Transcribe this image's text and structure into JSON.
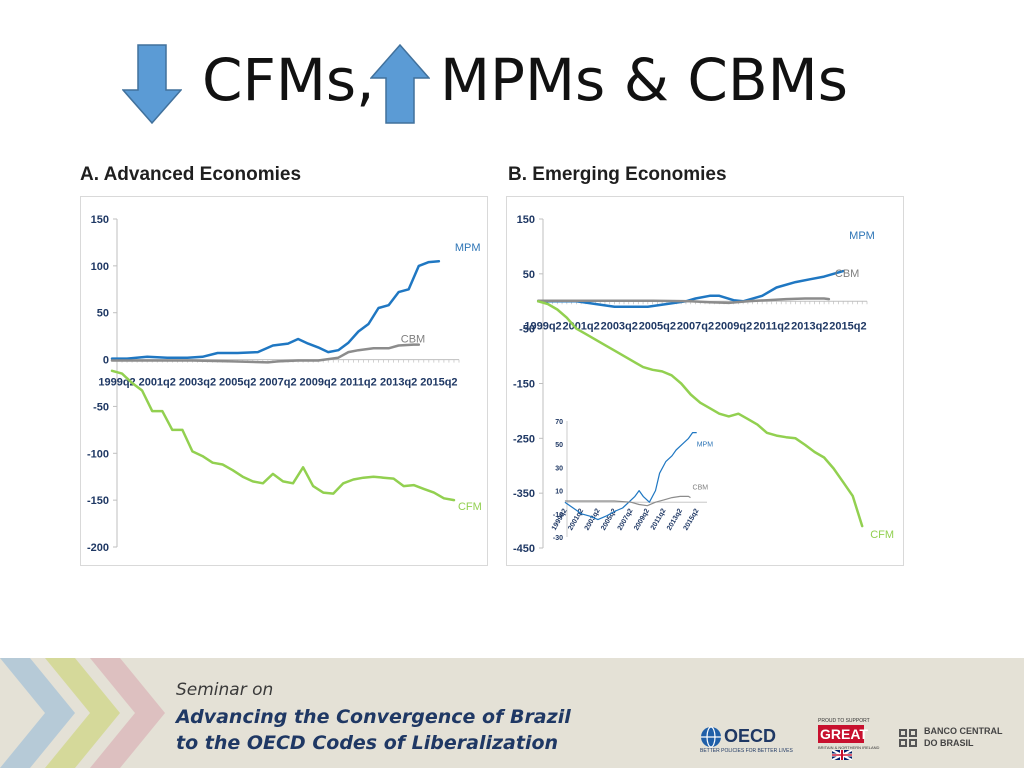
{
  "slide": {
    "title_part1": "CFMs,",
    "title_part2": "MPMs & CBMs",
    "arrow_colors": {
      "fill": "#5b9bd5",
      "stroke": "#41719c"
    }
  },
  "footer": {
    "line1": "Seminar on",
    "line2": "Advancing the Convergence of Brazil",
    "line3": "to the OECD Codes of Liberalization",
    "logos": {
      "oecd": "OECD",
      "oecd_tagline": "BETTER POLICIES FOR BETTER LIVES",
      "great_top": "PROUD TO SUPPORT",
      "great": "GREAT",
      "great_sub": "BRITAIN & NORTHERN IRELAND",
      "bcb_line1": "BANCO CENTRAL",
      "bcb_line2": "DO BRASIL"
    }
  },
  "colors": {
    "MPM": "#1f77c2",
    "CBM": "#8c8c8c",
    "CFM": "#92d050",
    "axis": "#bfbfbf",
    "tick_text": "#1f3864",
    "label_mpm": "#2e75b6",
    "label_cbm": "#7f7f7f",
    "label_cfm": "#92d050"
  },
  "chart_data": [
    {
      "type": "line",
      "title": "A. Advanced Economies",
      "x_ticks": [
        "1999q2",
        "2001q2",
        "2003q2",
        "2005q2",
        "2007q2",
        "2009q2",
        "2011q2",
        "2013q2",
        "2015q2"
      ],
      "x_range": [
        "1999q2",
        "2016q2"
      ],
      "ylim": [
        -200,
        150
      ],
      "y_ticks": [
        150,
        100,
        50,
        0,
        -50,
        -100,
        -150,
        -200
      ],
      "series": [
        {
          "name": "MPM",
          "x": [
            "1999q1",
            "1999q4",
            "2000q4",
            "2001q4",
            "2002q4",
            "2003q3",
            "2004q2",
            "2005q2",
            "2006q2",
            "2007q1",
            "2007q4",
            "2008q2",
            "2008q4",
            "2009q2",
            "2009q4",
            "2010q2",
            "2010q4",
            "2011q2",
            "2011q4",
            "2012q2",
            "2012q4",
            "2013q2",
            "2013q4",
            "2014q2",
            "2014q4",
            "2015q2"
          ],
          "values": [
            1,
            1,
            3,
            2,
            2,
            3,
            7,
            7,
            8,
            15,
            17,
            22,
            17,
            13,
            8,
            10,
            18,
            30,
            38,
            55,
            58,
            72,
            75,
            100,
            104,
            105
          ]
        },
        {
          "name": "CBM",
          "x": [
            "1999q1",
            "2001q1",
            "2003q1",
            "2005q1",
            "2006q4",
            "2007q2",
            "2008q2",
            "2009q2",
            "2010q2",
            "2010q4",
            "2011q2",
            "2012q1",
            "2012q4",
            "2013q2",
            "2014q1",
            "2014q2"
          ],
          "values": [
            -1,
            -1,
            -1,
            -2,
            -3,
            -2,
            -1,
            -1,
            2,
            8,
            10,
            12,
            12,
            15,
            16,
            16
          ]
        },
        {
          "name": "CFM",
          "x": [
            "1999q1",
            "1999q3",
            "2000q1",
            "2000q3",
            "2001q1",
            "2001q3",
            "2002q1",
            "2002q3",
            "2003q1",
            "2003q3",
            "2004q1",
            "2004q3",
            "2005q1",
            "2005q3",
            "2006q1",
            "2006q3",
            "2007q1",
            "2007q3",
            "2008q1",
            "2008q3",
            "2009q1",
            "2009q3",
            "2010q1",
            "2010q3",
            "2011q1",
            "2011q3",
            "2012q1",
            "2012q3",
            "2013q1",
            "2013q3",
            "2014q1",
            "2014q3",
            "2015q1",
            "2015q3",
            "2016q1"
          ],
          "values": [
            -12,
            -15,
            -25,
            -33,
            -55,
            -55,
            -75,
            -75,
            -98,
            -103,
            -110,
            -112,
            -118,
            -125,
            -130,
            -132,
            -122,
            -130,
            -132,
            -115,
            -135,
            -142,
            -143,
            -132,
            -128,
            -126,
            -125,
            -126,
            -127,
            -135,
            -134,
            -138,
            -142,
            -148,
            -150
          ]
        }
      ],
      "labels": {
        "MPM": "MPM",
        "CBM": "CBM",
        "CFM": "CFM"
      }
    },
    {
      "type": "line",
      "title": "B. Emerging Economies",
      "x_ticks": [
        "1999q2",
        "2001q2",
        "2003q2",
        "2005q2",
        "2007q2",
        "2009q2",
        "2011q2",
        "2013q2",
        "2015q2"
      ],
      "x_range": [
        "1999q2",
        "2016q2"
      ],
      "ylim": [
        -450,
        150
      ],
      "y_ticks": [
        150,
        50,
        -50,
        -150,
        -250,
        -350,
        -450
      ],
      "series": [
        {
          "name": "MPM",
          "x": [
            "1999q1",
            "2001q1",
            "2003q1",
            "2004q4",
            "2005q4",
            "2006q4",
            "2007q2",
            "2008q1",
            "2008q3",
            "2009q2",
            "2009q4",
            "2010q4",
            "2011q3",
            "2012q3",
            "2013q2",
            "2014q1",
            "2014q3",
            "2015q1"
          ],
          "values": [
            0,
            0,
            -10,
            -10,
            -5,
            0,
            5,
            10,
            10,
            2,
            0,
            10,
            25,
            35,
            40,
            45,
            50,
            55
          ]
        },
        {
          "name": "CBM",
          "x": [
            "1999q1",
            "2001q1",
            "2003q1",
            "2005q1",
            "2007q1",
            "2008q1",
            "2009q1",
            "2010q1",
            "2011q1",
            "2012q1",
            "2013q1",
            "2014q1",
            "2014q2"
          ],
          "values": [
            1,
            1,
            1,
            1,
            0,
            -2,
            -3,
            0,
            2,
            4,
            5,
            5,
            4
          ]
        },
        {
          "name": "CFM",
          "x": [
            "1999q1",
            "1999q3",
            "2000q1",
            "2000q3",
            "2001q1",
            "2001q3",
            "2002q1",
            "2002q3",
            "2003q1",
            "2003q3",
            "2004q1",
            "2004q3",
            "2005q1",
            "2005q3",
            "2006q1",
            "2006q3",
            "2007q1",
            "2007q3",
            "2008q1",
            "2008q3",
            "2009q1",
            "2009q3",
            "2010q1",
            "2010q3",
            "2011q1",
            "2011q3",
            "2012q1",
            "2012q3",
            "2013q1",
            "2013q3",
            "2014q1",
            "2014q3",
            "2015q1",
            "2015q3",
            "2016q1"
          ],
          "values": [
            0,
            -5,
            -15,
            -30,
            -50,
            -60,
            -70,
            -80,
            -90,
            -100,
            -110,
            -120,
            -125,
            -128,
            -135,
            -150,
            -170,
            -185,
            -195,
            -205,
            -210,
            -205,
            -215,
            -225,
            -240,
            -245,
            -248,
            -250,
            -262,
            -275,
            -285,
            -305,
            -330,
            -355,
            -410
          ]
        }
      ],
      "labels": {
        "MPM": "MPM",
        "CBM": "CBM",
        "CFM": "CFM"
      },
      "inset": {
        "type": "line",
        "ylim": [
          -30,
          70
        ],
        "y_ticks": [
          70,
          50,
          30,
          10,
          -10,
          -30
        ],
        "x_ticks": [
          "1999q2",
          "2001q2",
          "2003q2",
          "2005q2",
          "2007q2",
          "2009q2",
          "2011q2",
          "2013q2",
          "2015q2"
        ],
        "series": [
          {
            "name": "MPM",
            "x": [
              "1999q1",
              "2000q1",
              "2001q1",
              "2002q1",
              "2003q1",
              "2004q1",
              "2005q1",
              "2006q1",
              "2006q4",
              "2007q3",
              "2008q1",
              "2008q3",
              "2009q2",
              "2010q1",
              "2010q3",
              "2011q2",
              "2012q1",
              "2012q3",
              "2013q2",
              "2014q1",
              "2014q3",
              "2015q1"
            ],
            "values": [
              0,
              -5,
              -10,
              -12,
              -15,
              -12,
              -8,
              -5,
              0,
              5,
              10,
              5,
              0,
              10,
              25,
              35,
              40,
              45,
              50,
              55,
              60,
              60
            ]
          },
          {
            "name": "CBM",
            "x": [
              "1999q1",
              "2001q1",
              "2003q1",
              "2005q1",
              "2007q1",
              "2008q1",
              "2009q1",
              "2010q1",
              "2011q1",
              "2012q1",
              "2013q1",
              "2014q1",
              "2014q2"
            ],
            "values": [
              1,
              1,
              1,
              1,
              0,
              -2,
              -3,
              0,
              2,
              4,
              5,
              5,
              4
            ]
          }
        ],
        "labels": {
          "MPM": "MPM",
          "CBM": "CBM"
        }
      }
    }
  ]
}
